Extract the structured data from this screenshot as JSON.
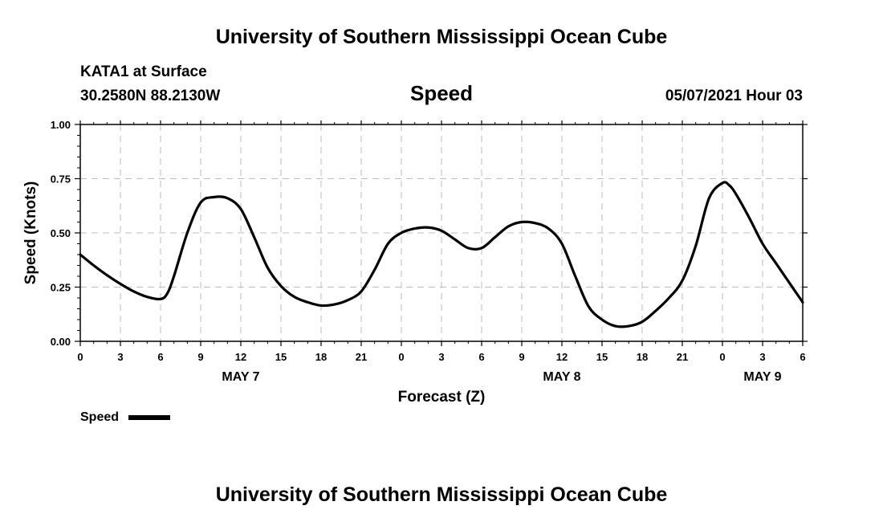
{
  "header": {
    "title_top": "University of Southern Mississippi Ocean Cube",
    "station": "KATA1 at Surface",
    "coords": "30.2580N  88.2130W",
    "variable": "Speed",
    "datetime": "05/07/2021 Hour 03"
  },
  "footer": {
    "title_bottom": "University of Southern Mississippi Ocean Cube"
  },
  "chart_data": {
    "type": "line",
    "xlabel": "Forecast (Z)",
    "ylabel": "Speed (Knots)",
    "xlim": [
      0,
      54
    ],
    "ylim": [
      0,
      1
    ],
    "x_ticks": [
      0,
      3,
      6,
      9,
      12,
      15,
      18,
      21,
      24,
      27,
      30,
      33,
      36,
      39,
      42,
      45,
      48,
      51,
      54
    ],
    "x_tick_labels": [
      "0",
      "3",
      "6",
      "9",
      "12",
      "15",
      "18",
      "21",
      "0",
      "3",
      "6",
      "9",
      "12",
      "15",
      "18",
      "21",
      "0",
      "3",
      "6"
    ],
    "y_ticks": [
      0,
      0.25,
      0.5,
      0.75,
      1.0
    ],
    "y_tick_labels": [
      "0.00",
      "0.25",
      "0.50",
      "0.75",
      "1.00"
    ],
    "day_labels": [
      {
        "label": "MAY 7",
        "x": 12
      },
      {
        "label": "MAY 8",
        "x": 36
      },
      {
        "label": "MAY 9",
        "x": 51
      }
    ],
    "grid": true,
    "legend_position": "bottom-left",
    "series": [
      {
        "name": "Speed",
        "color": "#000000",
        "x": [
          0,
          1,
          2,
          3,
          4,
          5,
          6,
          6.5,
          7,
          8,
          9,
          10,
          11,
          12,
          13,
          14,
          15,
          16,
          17,
          18,
          19,
          20,
          21,
          22,
          23,
          24,
          25,
          26,
          27,
          28,
          29,
          30,
          31,
          32,
          33,
          34,
          35,
          36,
          37,
          38,
          39,
          40,
          41,
          42,
          43,
          44,
          45,
          46,
          47,
          48,
          48.5,
          49,
          50,
          51,
          52,
          53,
          54
        ],
        "y": [
          0.4,
          0.35,
          0.305,
          0.265,
          0.23,
          0.205,
          0.195,
          0.22,
          0.3,
          0.5,
          0.64,
          0.665,
          0.66,
          0.61,
          0.48,
          0.34,
          0.255,
          0.205,
          0.18,
          0.165,
          0.17,
          0.19,
          0.23,
          0.33,
          0.45,
          0.5,
          0.52,
          0.525,
          0.51,
          0.47,
          0.43,
          0.43,
          0.48,
          0.53,
          0.55,
          0.545,
          0.52,
          0.45,
          0.3,
          0.16,
          0.1,
          0.07,
          0.07,
          0.09,
          0.14,
          0.2,
          0.28,
          0.44,
          0.66,
          0.73,
          0.72,
          0.68,
          0.57,
          0.45,
          0.36,
          0.27,
          0.18
        ]
      }
    ]
  }
}
